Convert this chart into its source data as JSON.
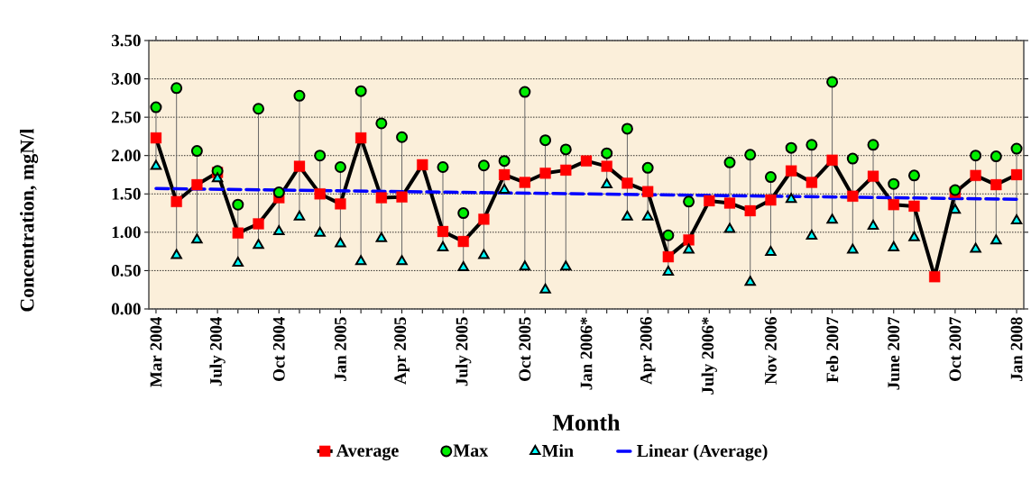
{
  "chart_data": {
    "type": "line",
    "xlabel": "Month",
    "ylabel": "Concentration, mgN/l",
    "categories": [
      "Mar 2004",
      null,
      null,
      "July 2004",
      null,
      null,
      "Oct 2004",
      null,
      null,
      "Jan 2005",
      null,
      null,
      "Apr 2005",
      null,
      null,
      "July 2005",
      null,
      null,
      "Oct 2005",
      null,
      null,
      "Jan 2006*",
      null,
      null,
      "Apr 2006",
      null,
      null,
      "July 2006*",
      null,
      null,
      "Nov 2006",
      null,
      null,
      "Feb 2007",
      null,
      null,
      "June 2007",
      null,
      null,
      "Oct 2007",
      null,
      null,
      "Jan 2008"
    ],
    "series": [
      {
        "name": "Average",
        "color": "#ff0000",
        "marker": "square",
        "line_style": "solid",
        "values": [
          2.23,
          1.4,
          1.62,
          1.78,
          0.99,
          1.11,
          1.45,
          1.86,
          1.5,
          1.37,
          2.23,
          1.45,
          1.46,
          1.88,
          1.01,
          0.88,
          1.17,
          1.75,
          1.65,
          1.77,
          1.81,
          1.93,
          1.86,
          1.64,
          1.53,
          0.68,
          0.9,
          1.41,
          1.38,
          1.28,
          1.42,
          1.8,
          1.65,
          1.94,
          1.47,
          1.73,
          1.36,
          1.34,
          0.42,
          1.52,
          1.74,
          1.62,
          1.75
        ]
      },
      {
        "name": "Max",
        "type": "scatter",
        "color": "#00ee00",
        "marker": "circle",
        "values": [
          2.63,
          2.88,
          2.06,
          1.8,
          1.36,
          2.61,
          1.52,
          2.78,
          2.0,
          1.85,
          2.84,
          2.42,
          2.24,
          null,
          1.85,
          1.25,
          1.87,
          1.93,
          2.83,
          2.2,
          2.08,
          null,
          2.03,
          2.35,
          1.84,
          0.96,
          1.4,
          null,
          1.91,
          2.01,
          1.72,
          2.1,
          2.14,
          2.96,
          1.96,
          2.14,
          1.63,
          1.74,
          null,
          1.55,
          2.0,
          1.99,
          2.09
        ]
      },
      {
        "name": "Min",
        "type": "scatter",
        "color": "#00ffff",
        "marker": "triangle",
        "values": [
          1.86,
          0.7,
          0.9,
          1.7,
          0.6,
          0.83,
          1.01,
          1.2,
          0.99,
          0.85,
          0.62,
          0.92,
          0.62,
          null,
          0.8,
          0.54,
          0.7,
          1.55,
          0.55,
          0.25,
          0.55,
          null,
          1.62,
          1.2,
          1.2,
          0.48,
          0.77,
          null,
          1.04,
          0.35,
          0.74,
          1.43,
          0.95,
          1.16,
          0.77,
          1.08,
          0.8,
          0.93,
          null,
          1.29,
          0.78,
          0.89,
          1.15
        ]
      },
      {
        "name": "Linear (Average)",
        "type": "line",
        "color": "#0000ff",
        "marker": "none",
        "line_style": "dashed",
        "values": [
          1.57,
          null,
          null,
          null,
          null,
          null,
          null,
          null,
          null,
          null,
          null,
          null,
          null,
          null,
          null,
          null,
          null,
          null,
          null,
          null,
          null,
          null,
          null,
          null,
          null,
          null,
          null,
          null,
          null,
          null,
          null,
          null,
          null,
          null,
          null,
          null,
          null,
          null,
          null,
          null,
          null,
          null,
          1.43
        ]
      }
    ],
    "ylim": [
      0,
      3.5
    ],
    "yticks": [
      {
        "value": 0,
        "label": "0.00"
      },
      {
        "value": 0.5,
        "label": "0.50"
      },
      {
        "value": 1,
        "label": "1.00"
      },
      {
        "value": 1.5,
        "label": "1.50"
      },
      {
        "value": 2,
        "label": "2.00"
      },
      {
        "value": 2.5,
        "label": "2.50"
      },
      {
        "value": 3,
        "label": "3.00"
      },
      {
        "value": 3.5,
        "label": "3.50"
      }
    ],
    "grid": "y",
    "legend": "bottom"
  }
}
